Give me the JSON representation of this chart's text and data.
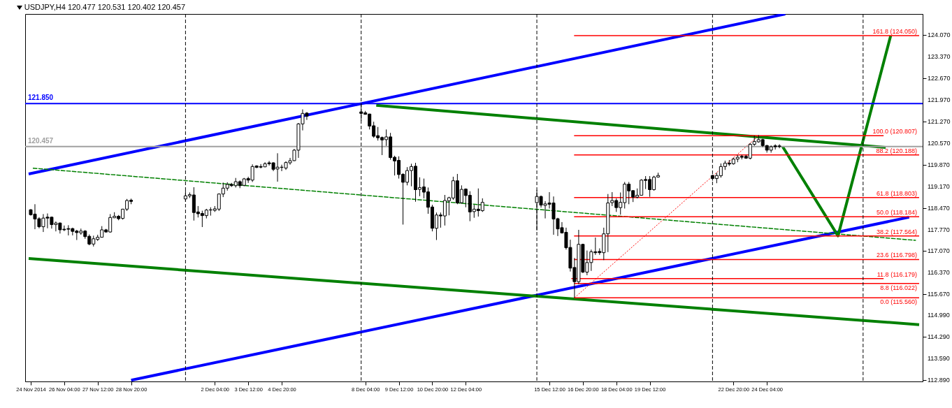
{
  "chart_data": {
    "type": "candlestick",
    "title": "USDJPY,H4 120.477 120.531 120.402 120.457",
    "x": [
      "2014-11-24T20:00",
      "2014-11-25T00:00",
      "2014-11-25T04:00",
      "2014-11-25T08:00",
      "2014-11-25T12:00",
      "2014-11-25T16:00",
      "2014-11-25T20:00",
      "2014-11-26T00:00",
      "2014-11-26T04:00",
      "2014-11-26T08:00",
      "2014-11-26T12:00",
      "2014-11-26T16:00",
      "2014-11-26T20:00",
      "2014-11-27T00:00",
      "2014-11-27T04:00",
      "2014-11-27T08:00",
      "2014-11-27T12:00",
      "2014-11-27T16:00",
      "2014-11-27T20:00",
      "2014-11-28T00:00",
      "2014-11-28T04:00",
      "2014-11-28T08:00",
      "2014-11-28T12:00",
      "2014-11-28T16:00",
      "2014-11-28T20:00",
      "2014-12-01T00:00",
      "2014-12-01T04:00",
      "2014-12-01T08:00",
      "2014-12-01T12:00",
      "2014-12-01T16:00",
      "2014-12-01T20:00",
      "2014-12-02T00:00",
      "2014-12-02T04:00",
      "2014-12-02T08:00",
      "2014-12-02T12:00",
      "2014-12-02T16:00",
      "2014-12-02T20:00",
      "2014-12-03T00:00",
      "2014-12-03T04:00",
      "2014-12-03T08:00",
      "2014-12-03T12:00",
      "2014-12-03T16:00",
      "2014-12-03T20:00",
      "2014-12-04T00:00",
      "2014-12-04T04:00",
      "2014-12-04T08:00",
      "2014-12-04T12:00",
      "2014-12-04T16:00",
      "2014-12-04T20:00",
      "2014-12-05T00:00",
      "2014-12-05T04:00",
      "2014-12-05T08:00",
      "2014-12-05T12:00",
      "2014-12-05T16:00",
      "2014-12-05T20:00",
      "2014-12-08T00:00",
      "2014-12-08T04:00",
      "2014-12-08T08:00",
      "2014-12-08T12:00",
      "2014-12-08T16:00",
      "2014-12-08T20:00",
      "2014-12-09T00:00",
      "2014-12-09T04:00",
      "2014-12-09T08:00",
      "2014-12-09T12:00",
      "2014-12-09T16:00",
      "2014-12-09T20:00",
      "2014-12-10T00:00",
      "2014-12-10T04:00",
      "2014-12-10T08:00",
      "2014-12-10T12:00",
      "2014-12-10T16:00",
      "2014-12-10T20:00",
      "2014-12-11T00:00",
      "2014-12-11T04:00",
      "2014-12-11T08:00",
      "2014-12-11T12:00",
      "2014-12-11T16:00",
      "2014-12-11T20:00",
      "2014-12-12T00:00",
      "2014-12-12T04:00",
      "2014-12-12T08:00",
      "2014-12-12T12:00",
      "2014-12-12T16:00",
      "2014-12-12T20:00",
      "2014-12-15T00:00",
      "2014-12-15T04:00",
      "2014-12-15T08:00",
      "2014-12-15T12:00",
      "2014-12-15T16:00",
      "2014-12-15T20:00",
      "2014-12-16T00:00",
      "2014-12-16T04:00",
      "2014-12-16T08:00",
      "2014-12-16T12:00",
      "2014-12-16T16:00",
      "2014-12-16T20:00",
      "2014-12-17T00:00",
      "2014-12-17T04:00",
      "2014-12-17T08:00",
      "2014-12-17T12:00",
      "2014-12-17T16:00",
      "2014-12-17T20:00",
      "2014-12-18T00:00",
      "2014-12-18T04:00",
      "2014-12-18T08:00",
      "2014-12-18T12:00",
      "2014-12-18T16:00",
      "2014-12-18T20:00",
      "2014-12-19T00:00",
      "2014-12-19T04:00",
      "2014-12-19T08:00",
      "2014-12-19T12:00",
      "2014-12-19T16:00",
      "2014-12-19T20:00",
      "2014-12-22T00:00",
      "2014-12-22T04:00",
      "2014-12-22T08:00",
      "2014-12-22T12:00",
      "2014-12-22T16:00",
      "2014-12-22T20:00",
      "2014-12-23T00:00",
      "2014-12-23T04:00",
      "2014-12-23T08:00",
      "2014-12-23T12:00",
      "2014-12-23T16:00",
      "2014-12-23T20:00",
      "2014-12-24T00:00",
      "2014-12-24T04:00",
      "2014-12-24T08:00",
      "2014-12-24T12:00",
      "2014-12-24T16:00"
    ],
    "ohlc": [
      [
        118.41,
        118.43,
        118.22,
        118.25
      ],
      [
        118.27,
        118.59,
        117.78,
        118.11
      ],
      [
        118.12,
        118.17,
        117.81,
        117.86
      ],
      [
        117.86,
        118.27,
        117.69,
        118.14
      ],
      [
        118.17,
        118.29,
        117.81,
        118.14
      ],
      [
        118.17,
        118.19,
        117.8,
        117.93
      ],
      [
        117.93,
        118.03,
        117.71,
        117.98
      ],
      [
        117.98,
        118.0,
        117.64,
        117.76
      ],
      [
        117.78,
        117.9,
        117.72,
        117.76
      ],
      [
        117.8,
        117.91,
        117.58,
        117.78
      ],
      [
        117.8,
        117.83,
        117.58,
        117.71
      ],
      [
        117.72,
        117.76,
        117.43,
        117.67
      ],
      [
        117.66,
        117.8,
        117.6,
        117.72
      ],
      [
        117.72,
        117.75,
        117.47,
        117.54
      ],
      [
        117.55,
        117.61,
        117.26,
        117.3
      ],
      [
        117.3,
        117.57,
        117.22,
        117.47
      ],
      [
        117.45,
        117.6,
        117.4,
        117.52
      ],
      [
        117.52,
        117.88,
        117.51,
        117.76
      ],
      [
        117.76,
        117.79,
        117.67,
        117.69
      ],
      [
        117.69,
        118.27,
        117.67,
        118.16
      ],
      [
        118.15,
        118.33,
        118.14,
        118.2
      ],
      [
        118.2,
        118.24,
        118.07,
        118.12
      ],
      [
        118.13,
        118.44,
        118.09,
        118.43
      ],
      [
        118.43,
        118.76,
        118.37,
        118.71
      ],
      [
        118.72,
        118.77,
        118.59,
        118.68
      ],
      [
        118.76,
        119.03,
        118.67,
        118.86
      ],
      [
        118.86,
        118.97,
        118.79,
        118.9
      ],
      [
        118.89,
        119.14,
        118.06,
        118.32
      ],
      [
        118.34,
        118.53,
        118.16,
        118.28
      ],
      [
        118.29,
        118.38,
        117.85,
        118.22
      ],
      [
        118.22,
        118.44,
        118.13,
        118.4
      ],
      [
        118.4,
        118.49,
        118.22,
        118.41
      ],
      [
        118.39,
        118.53,
        118.34,
        118.44
      ],
      [
        118.43,
        118.94,
        118.37,
        118.92
      ],
      [
        118.92,
        119.29,
        118.82,
        119.11
      ],
      [
        119.11,
        119.3,
        119.03,
        119.23
      ],
      [
        119.23,
        119.28,
        119.15,
        119.19
      ],
      [
        119.19,
        119.44,
        119.13,
        119.32
      ],
      [
        119.32,
        119.36,
        119.11,
        119.19
      ],
      [
        119.2,
        119.44,
        119.17,
        119.41
      ],
      [
        119.42,
        119.48,
        119.28,
        119.37
      ],
      [
        119.37,
        119.88,
        119.31,
        119.81
      ],
      [
        119.83,
        119.85,
        119.76,
        119.78
      ],
      [
        119.81,
        119.89,
        119.75,
        119.79
      ],
      [
        119.8,
        119.95,
        119.79,
        119.9
      ],
      [
        119.93,
        119.99,
        119.84,
        119.9
      ],
      [
        119.93,
        119.95,
        119.66,
        119.72
      ],
      [
        119.73,
        120.24,
        119.32,
        119.79
      ],
      [
        119.79,
        119.87,
        119.66,
        119.78
      ],
      [
        119.76,
        119.98,
        119.7,
        119.94
      ],
      [
        119.93,
        120.09,
        119.87,
        120.0
      ],
      [
        120.0,
        120.38,
        119.99,
        120.34
      ],
      [
        120.34,
        121.22,
        120.09,
        121.19
      ],
      [
        121.19,
        121.66,
        120.98,
        121.53
      ],
      [
        121.54,
        121.57,
        121.32,
        121.44
      ],
      [
        121.58,
        121.85,
        121.29,
        121.53
      ],
      [
        121.55,
        121.61,
        121.49,
        121.5
      ],
      [
        121.51,
        121.52,
        121.01,
        121.12
      ],
      [
        121.13,
        121.26,
        120.74,
        120.79
      ],
      [
        120.81,
        121.09,
        120.65,
        120.74
      ],
      [
        120.75,
        120.78,
        120.18,
        120.67
      ],
      [
        120.68,
        121.01,
        120.48,
        120.77
      ],
      [
        120.77,
        120.9,
        120.03,
        120.1
      ],
      [
        120.11,
        120.16,
        119.52,
        119.99
      ],
      [
        120.01,
        120.14,
        119.42,
        119.55
      ],
      [
        119.56,
        119.59,
        117.93,
        119.3
      ],
      [
        119.3,
        119.79,
        119.2,
        119.68
      ],
      [
        119.68,
        119.9,
        119.17,
        119.81
      ],
      [
        119.82,
        119.93,
        118.67,
        119.06
      ],
      [
        119.07,
        119.46,
        118.85,
        119.13
      ],
      [
        119.15,
        119.42,
        118.78,
        118.98
      ],
      [
        118.99,
        119.13,
        118.28,
        118.49
      ],
      [
        118.5,
        118.57,
        117.71,
        117.81
      ],
      [
        117.81,
        118.32,
        117.43,
        118.24
      ],
      [
        118.24,
        118.32,
        117.83,
        118.21
      ],
      [
        118.21,
        118.89,
        117.9,
        118.71
      ],
      [
        118.7,
        118.83,
        118.23,
        118.8
      ],
      [
        118.79,
        119.48,
        118.73,
        119.35
      ],
      [
        119.35,
        119.57,
        118.59,
        118.63
      ],
      [
        118.64,
        119.2,
        118.6,
        119.07
      ],
      [
        119.08,
        119.1,
        118.49,
        118.87
      ],
      [
        118.88,
        119.01,
        118.04,
        118.34
      ],
      [
        118.35,
        118.57,
        118.15,
        118.43
      ],
      [
        118.43,
        119.1,
        118.19,
        118.38
      ],
      [
        118.38,
        118.78,
        118.34,
        118.65
      ],
      [
        118.64,
        119.05,
        117.74,
        118.84
      ],
      [
        118.84,
        118.87,
        118.48,
        118.56
      ],
      [
        118.55,
        118.69,
        118.13,
        118.6
      ],
      [
        118.63,
        118.98,
        118.45,
        118.59
      ],
      [
        118.63,
        118.84,
        117.6,
        118.11
      ],
      [
        118.12,
        118.15,
        117.56,
        117.79
      ],
      [
        117.83,
        118.01,
        117.64,
        117.66
      ],
      [
        117.68,
        117.83,
        117.12,
        117.18
      ],
      [
        117.19,
        117.44,
        116.41,
        116.52
      ],
      [
        116.54,
        116.85,
        115.56,
        116.08
      ],
      [
        116.08,
        117.76,
        116.0,
        117.29
      ],
      [
        117.29,
        117.31,
        116.36,
        116.39
      ],
      [
        116.39,
        117.09,
        116.29,
        116.7
      ],
      [
        116.7,
        117.12,
        116.43,
        117.05
      ],
      [
        117.05,
        117.51,
        116.95,
        117.02
      ],
      [
        117.06,
        117.16,
        116.95,
        117.02
      ],
      [
        117.02,
        117.83,
        116.78,
        117.63
      ],
      [
        117.63,
        118.92,
        117.04,
        118.63
      ],
      [
        118.64,
        118.98,
        118.53,
        118.71
      ],
      [
        118.71,
        118.78,
        118.34,
        118.48
      ],
      [
        118.48,
        118.97,
        118.25,
        118.65
      ],
      [
        118.64,
        119.31,
        118.45,
        119.24
      ],
      [
        119.24,
        119.31,
        118.59,
        119.02
      ],
      [
        119.03,
        119.04,
        118.66,
        118.82
      ],
      [
        118.82,
        119.1,
        118.78,
        118.88
      ],
      [
        118.88,
        119.4,
        118.87,
        119.37
      ],
      [
        119.39,
        119.5,
        119.08,
        119.36
      ],
      [
        119.39,
        119.5,
        118.83,
        119.06
      ],
      [
        119.06,
        119.51,
        119.03,
        119.47
      ],
      [
        119.47,
        119.61,
        119.45,
        119.52
      ],
      [
        119.52,
        119.55,
        119.35,
        119.42
      ],
      [
        119.42,
        119.61,
        119.27,
        119.52
      ],
      [
        119.51,
        119.91,
        119.45,
        119.81
      ],
      [
        119.81,
        120.0,
        119.7,
        119.92
      ],
      [
        119.92,
        120.02,
        119.83,
        119.89
      ],
      [
        119.9,
        120.1,
        119.87,
        120.05
      ],
      [
        120.05,
        120.19,
        119.95,
        120.11
      ],
      [
        120.14,
        120.19,
        120.04,
        120.11
      ],
      [
        120.14,
        120.19,
        120.06,
        120.08
      ],
      [
        120.08,
        120.57,
        120.04,
        120.53
      ],
      [
        120.53,
        120.81,
        120.48,
        120.62
      ],
      [
        120.61,
        120.83,
        120.58,
        120.68
      ],
      [
        120.68,
        120.71,
        120.44,
        120.49
      ],
      [
        120.49,
        120.51,
        120.26,
        120.34
      ],
      [
        120.34,
        120.49,
        120.26,
        120.45
      ],
      [
        120.48,
        120.53,
        120.36,
        120.45
      ],
      [
        120.477,
        120.531,
        120.402,
        120.457
      ]
    ],
    "series": [
      {
        "type": "line",
        "color": "#0000ff",
        "x": [
          "2014-11-24T18:00",
          "2014-12-24T21:36"
        ],
        "values": [
          119.57,
          124.75
        ]
      },
      {
        "type": "line",
        "color": "#0000ff",
        "x": [
          "2014-11-28T20:00",
          "2014-12-29T20:00"
        ],
        "values": [
          112.89,
          118.17
        ]
      },
      {
        "type": "line",
        "color": "#008000",
        "x": [
          "2014-12-08T14:24",
          "2014-12-28T21:36"
        ],
        "values": [
          121.79,
          120.43
        ]
      },
      {
        "type": "line",
        "color": "#008000",
        "x": [
          "2014-11-24T18:00",
          "2014-12-30T05:36"
        ],
        "values": [
          116.83,
          114.69
        ]
      },
      {
        "type": "line",
        "color": "#008000",
        "x": [
          "2014-11-24T21:00",
          "2014-12-30T02:00"
        ],
        "values": [
          119.76,
          117.42
        ],
        "line_style": "dashed"
      },
      {
        "type": "line",
        "color": "#ff0000",
        "x": [
          "2014-12-16T12:00",
          "2014-12-23T20:00"
        ],
        "values": [
          115.56,
          120.807
        ],
        "line_style": "dotted"
      },
      {
        "type": "line",
        "color": "#008000",
        "x": [
          "2014-12-24T19:00",
          "2014-12-27T00:00",
          "2014-12-29T02:24"
        ],
        "values": [
          120.457,
          117.564,
          124.05
        ]
      },
      {
        "type": "line",
        "name": "161.8 (124.050)",
        "color": "#ff0000",
        "x": [
          "2014-12-16T11:36",
          "2014-12-30T05:36"
        ],
        "values": [
          124.05,
          124.05
        ]
      },
      {
        "type": "line",
        "name": "100.0 (120.807)",
        "color": "#ff0000",
        "x": [
          "2014-12-16T11:36",
          "2014-12-28T19:36"
        ],
        "values": [
          120.807,
          120.807
        ]
      },
      {
        "type": "line",
        "name": "88.2 (120.188)",
        "color": "#ff0000",
        "x": [
          "2014-12-16T11:36",
          "2014-12-30T05:36"
        ],
        "values": [
          120.188,
          120.188
        ]
      },
      {
        "type": "line",
        "name": "61.8 (118.803)",
        "color": "#ff0000",
        "x": [
          "2014-12-16T11:36",
          "2014-12-30T05:36"
        ],
        "values": [
          118.803,
          118.803
        ]
      },
      {
        "type": "line",
        "name": "50.0 (118.184)",
        "color": "#ff0000",
        "x": [
          "2014-12-16T11:36",
          "2014-12-30T05:36"
        ],
        "values": [
          118.184,
          118.184
        ]
      },
      {
        "type": "line",
        "name": "38.2 (117.564)",
        "color": "#ff0000",
        "x": [
          "2014-12-16T11:36",
          "2014-12-30T05:36"
        ],
        "values": [
          117.564,
          117.564
        ]
      },
      {
        "type": "line",
        "name": "23.6 (116.798)",
        "color": "#ff0000",
        "x": [
          "2014-12-16T11:36",
          "2014-12-30T05:36"
        ],
        "values": [
          116.798,
          116.798
        ]
      },
      {
        "type": "line",
        "name": "11.8 (116.179)",
        "color": "#ff0000",
        "x": [
          "2014-12-16T09:00",
          "2014-12-28T19:36"
        ],
        "values": [
          116.179,
          116.179
        ]
      },
      {
        "type": "line",
        "name": "8.8 (116.022)",
        "color": "#ff0000",
        "x": [
          "2014-12-16T11:36",
          "2014-12-30T05:36"
        ],
        "values": [
          116.022,
          116.022
        ]
      },
      {
        "type": "line",
        "name": "0.0 (115.560)",
        "color": "#ff0000",
        "x": [
          "2014-12-16T11:36",
          "2014-12-30T05:36"
        ],
        "values": [
          115.56,
          115.56
        ]
      }
    ],
    "ref_lines": [
      {
        "axis": "y",
        "value": 121.85,
        "label": "121.850",
        "color": "#0000ff"
      },
      {
        "axis": "y",
        "value": 120.457,
        "label": "120.457",
        "color": "#a0a0a0"
      },
      {
        "axis": "x",
        "value": "2014-12-01T00:00",
        "color": "#000000",
        "line_style": "dashed"
      },
      {
        "axis": "x",
        "value": "2014-12-08T00:00",
        "color": "#000000",
        "line_style": "dashed"
      },
      {
        "axis": "x",
        "value": "2014-12-15T00:00",
        "color": "#000000",
        "line_style": "dashed"
      },
      {
        "axis": "x",
        "value": "2014-12-22T00:00",
        "color": "#000000",
        "line_style": "dashed"
      },
      {
        "axis": "x",
        "value": "2014-12-28T00:00",
        "color": "#000000",
        "line_style": "dashed"
      }
    ],
    "xlim": [
      "2014-11-24T18:00",
      "2014-12-30T05:36"
    ],
    "xticks": [
      {
        "value": "2014-11-24T20:00",
        "label": "24 Nov 2014"
      },
      {
        "value": "2014-11-26T04:00",
        "label": "26 Nov 04:00"
      },
      {
        "value": "2014-11-27T12:00",
        "label": "27 Nov 12:00"
      },
      {
        "value": "2014-11-28T20:00",
        "label": "28 Nov 20:00"
      },
      {
        "value": "2014-12-02T04:00",
        "label": "2 Dec 04:00"
      },
      {
        "value": "2014-12-03T12:00",
        "label": "3 Dec 12:00"
      },
      {
        "value": "2014-12-04T20:00",
        "label": "4 Dec 20:00"
      },
      {
        "value": "2014-12-08T04:00",
        "label": "8 Dec 04:00"
      },
      {
        "value": "2014-12-09T12:00",
        "label": "9 Dec 12:00"
      },
      {
        "value": "2014-12-10T20:00",
        "label": "10 Dec 20:00"
      },
      {
        "value": "2014-12-12T04:00",
        "label": "12 Dec 04:00"
      },
      {
        "value": "2014-12-15T12:00",
        "label": "15 Dec 12:00"
      },
      {
        "value": "2014-12-16T20:00",
        "label": "16 Dec 20:00"
      },
      {
        "value": "2014-12-18T04:00",
        "label": "18 Dec 04:00"
      },
      {
        "value": "2014-12-19T12:00",
        "label": "19 Dec 12:00"
      },
      {
        "value": "2014-12-22T20:00",
        "label": "22 Dec 20:00"
      },
      {
        "value": "2014-12-24T04:00",
        "label": "24 Dec 04:00"
      }
    ],
    "ylim": [
      112.85,
      124.75
    ],
    "yticks": [
      {
        "value": 112.89,
        "label": "112.890"
      },
      {
        "value": 113.59,
        "label": "113.590"
      },
      {
        "value": 114.29,
        "label": "114.290"
      },
      {
        "value": 114.99,
        "label": "114.990"
      },
      {
        "value": 115.67,
        "label": "115.670"
      },
      {
        "value": 116.37,
        "label": "116.370"
      },
      {
        "value": 117.07,
        "label": "117.070"
      },
      {
        "value": 117.77,
        "label": "117.770"
      },
      {
        "value": 118.47,
        "label": "118.470"
      },
      {
        "value": 119.17,
        "label": "119.170"
      },
      {
        "value": 119.87,
        "label": "119.870"
      },
      {
        "value": 120.57,
        "label": "120.570"
      },
      {
        "value": 121.27,
        "label": "121.270"
      },
      {
        "value": 121.97,
        "label": "121.970"
      },
      {
        "value": 122.67,
        "label": "122.670"
      },
      {
        "value": 123.37,
        "label": "123.370"
      },
      {
        "value": 124.07,
        "label": "124.070"
      }
    ]
  }
}
